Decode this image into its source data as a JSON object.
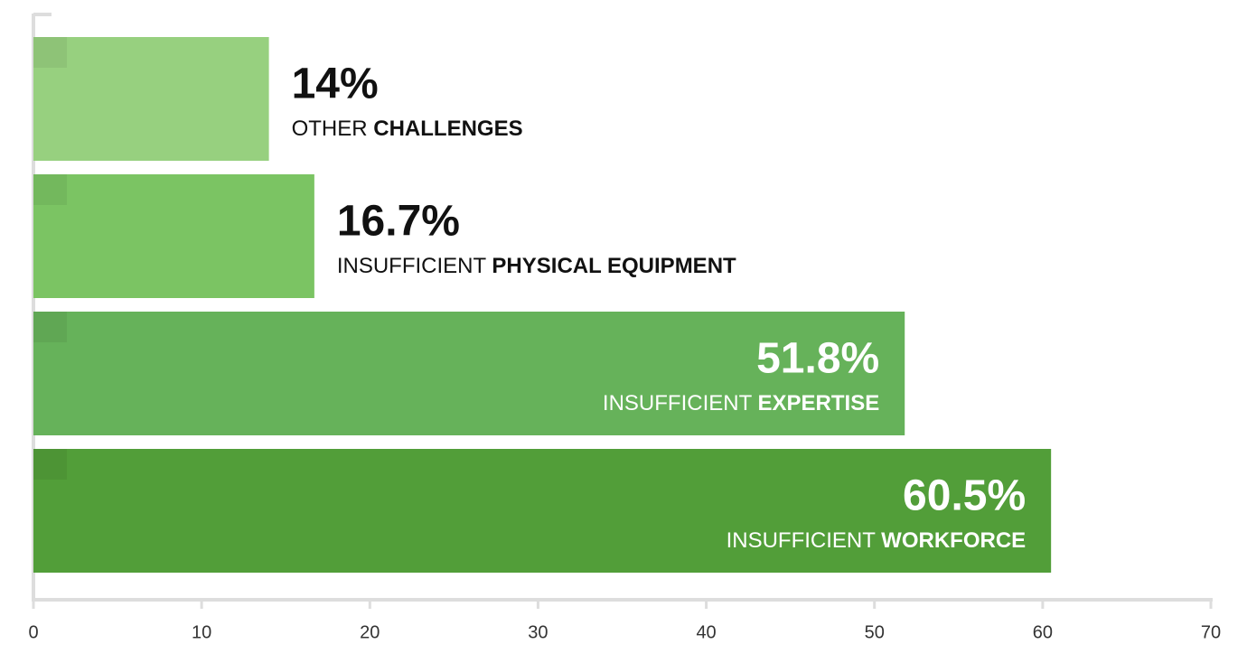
{
  "chart_data": {
    "type": "hbar",
    "categories": [
      [
        "OTHER",
        "CHALLENGES"
      ],
      [
        "INSUFFICIENT",
        "PHYSICAL EQUIPMENT"
      ],
      [
        "INSUFFICIENT",
        "EXPERTISE"
      ],
      [
        "INSUFFICIENT",
        "WORKFORCE"
      ]
    ],
    "values": [
      14,
      16.7,
      51.8,
      60.5
    ],
    "value_labels": [
      "14%",
      "16.7%",
      "51.8%",
      "60.5%"
    ],
    "colors": [
      "#97d07f",
      "#7bc463",
      "#66b25a",
      "#529e39"
    ],
    "xlim": [
      0,
      70
    ],
    "xticks": [
      0,
      10,
      20,
      30,
      40,
      50,
      60,
      70
    ]
  }
}
